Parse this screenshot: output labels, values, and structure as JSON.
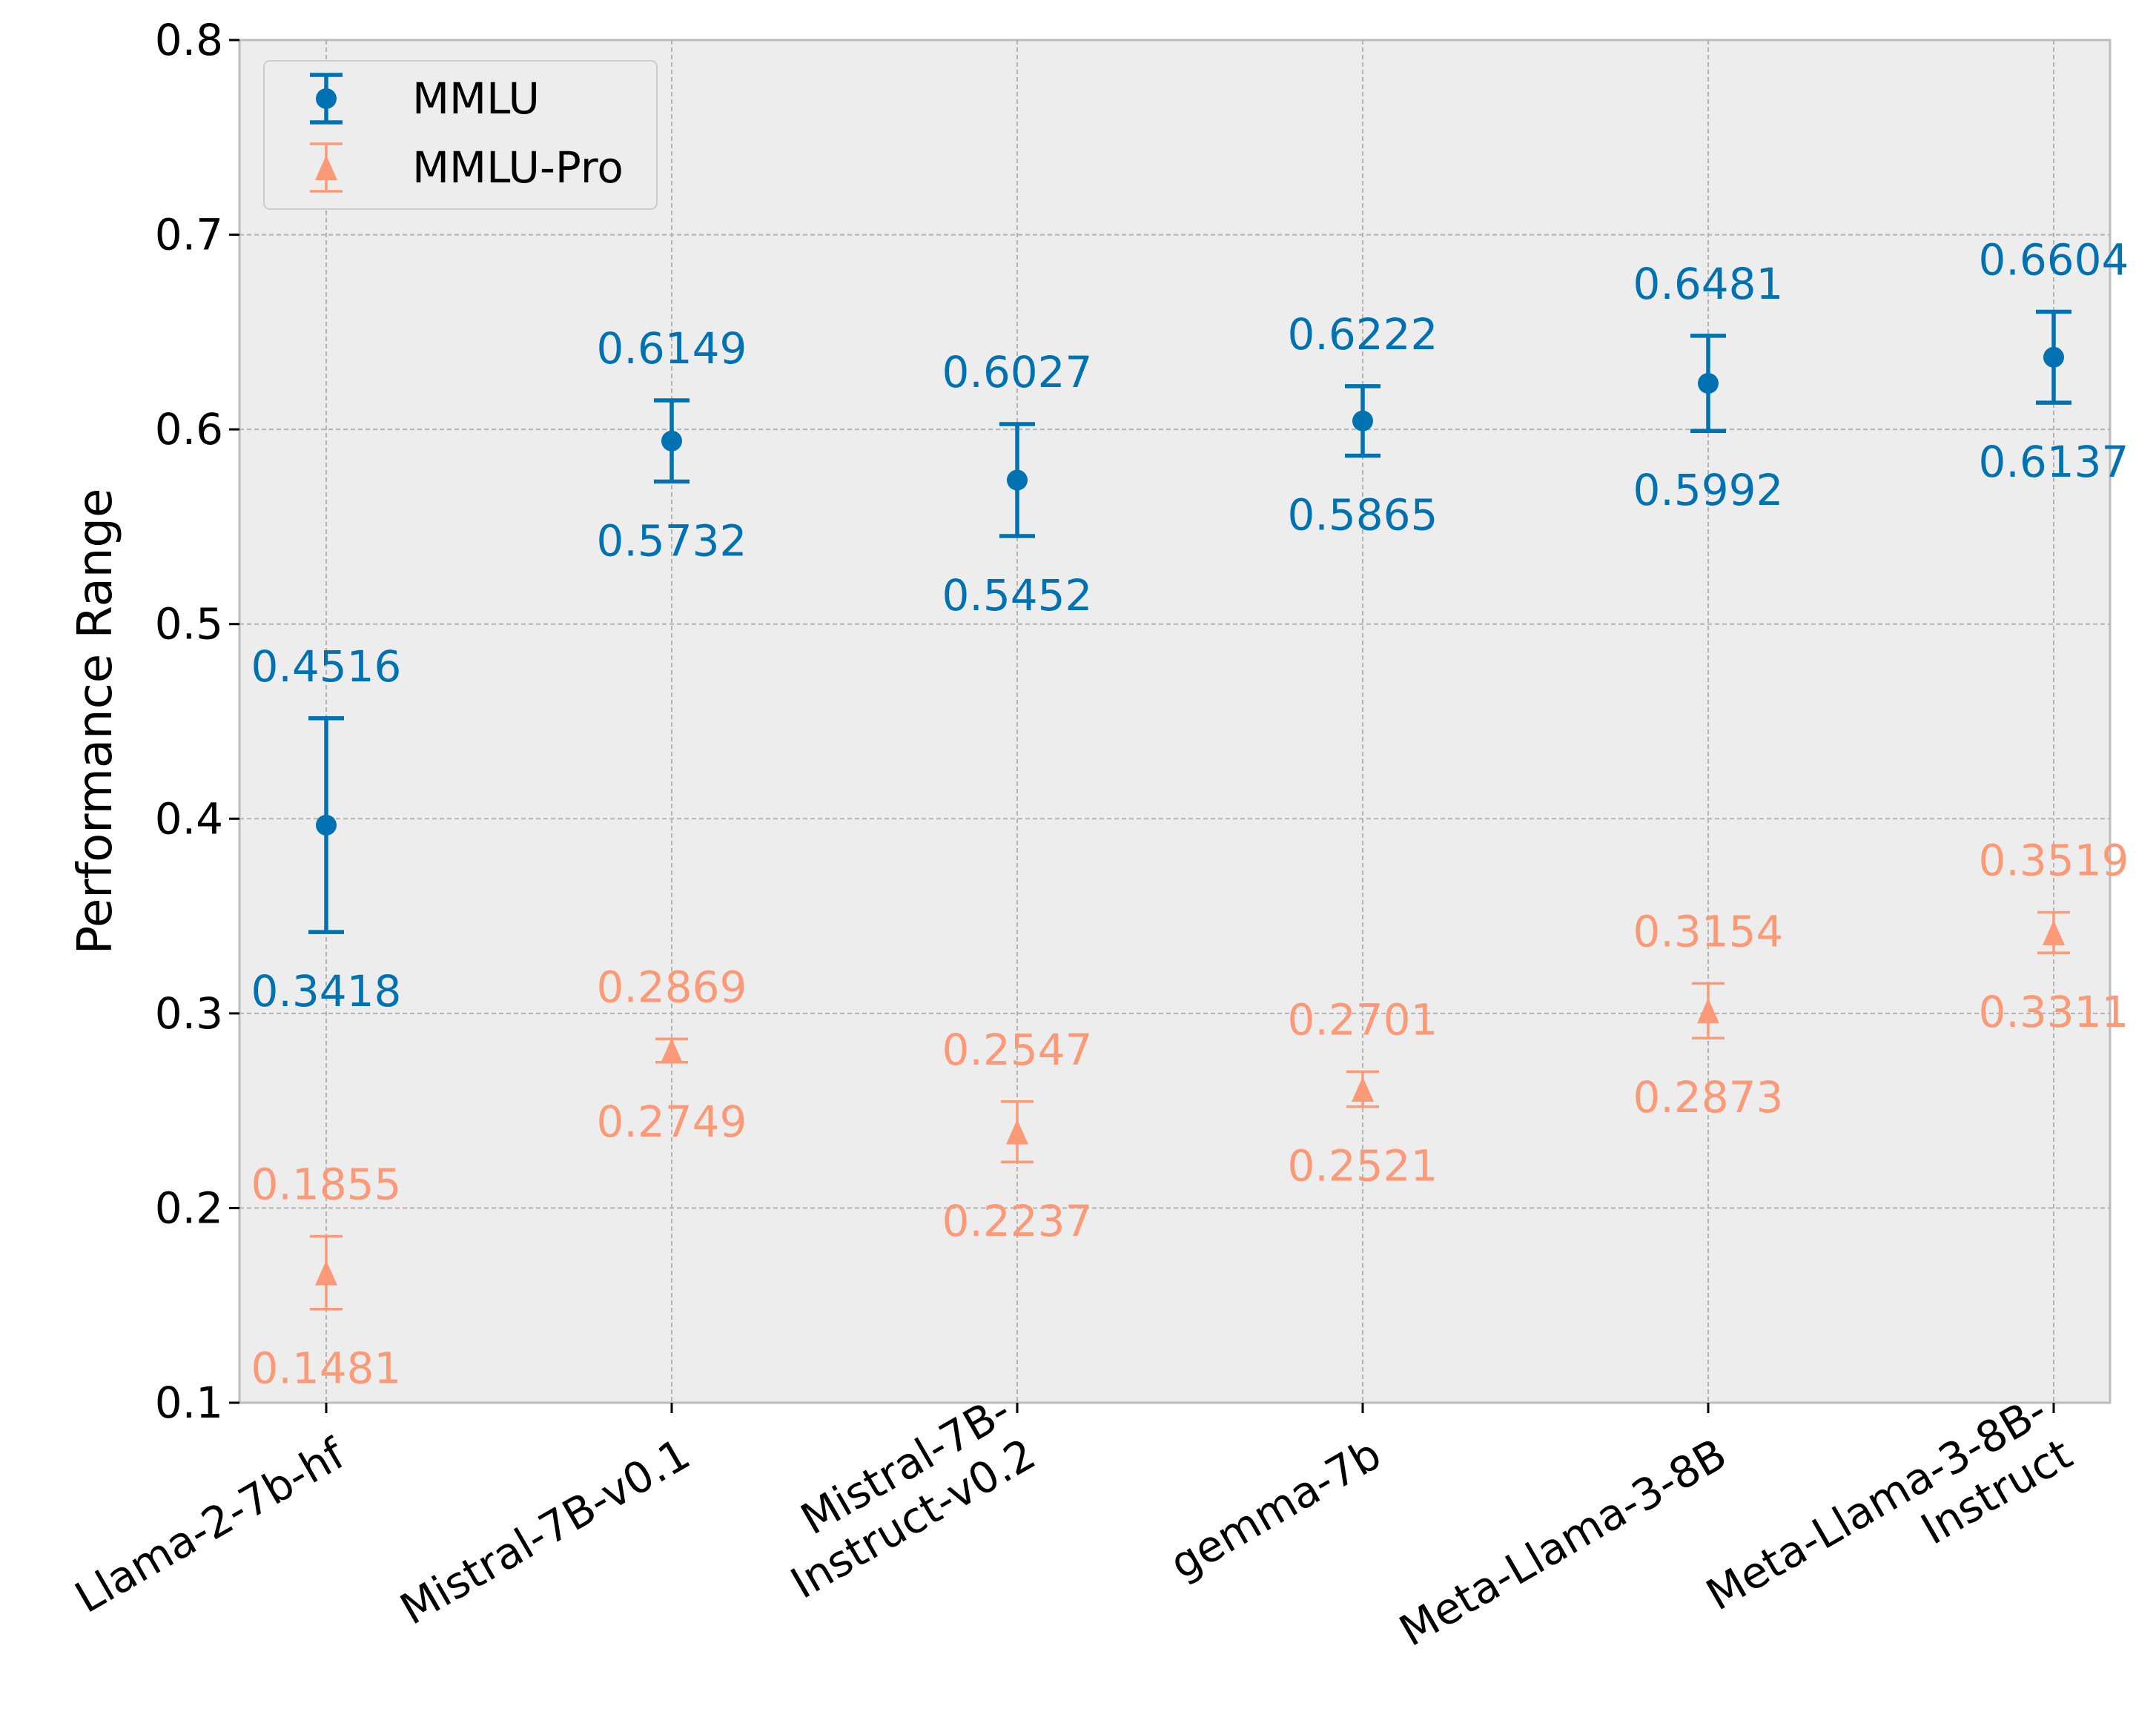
{
  "chart_data": {
    "type": "errorbar",
    "title": "",
    "xlabel": "",
    "ylabel": "Performance Range",
    "ylim": [
      0.1,
      0.8
    ],
    "yticks": [
      "0.1",
      "0.2",
      "0.3",
      "0.4",
      "0.5",
      "0.6",
      "0.7",
      "0.8"
    ],
    "grid": true,
    "legend_position": "top-left",
    "categories": [
      [
        "Llama-2-7b-hf"
      ],
      [
        "Mistral-7B-v0.1"
      ],
      [
        "Mistral-7B-",
        "Instruct-v0.2"
      ],
      [
        "gemma-7b"
      ],
      [
        "Meta-Llama-3-8B"
      ],
      [
        "Meta-Llama-3-8B-",
        "Instruct"
      ]
    ],
    "series": [
      {
        "name": "MMLU",
        "marker": "circle",
        "color": "#0072b2",
        "low": [
          0.3418,
          0.5732,
          0.5452,
          0.5865,
          0.5992,
          0.6137
        ],
        "high": [
          0.4516,
          0.6149,
          0.6027,
          0.6222,
          0.6481,
          0.6604
        ],
        "low_labels": [
          "0.3418",
          "0.5732",
          "0.5452",
          "0.5865",
          "0.5992",
          "0.6137"
        ],
        "high_labels": [
          "0.4516",
          "0.6149",
          "0.6027",
          "0.6222",
          "0.6481",
          "0.6604"
        ]
      },
      {
        "name": "MMLU-Pro",
        "marker": "triangle",
        "color": "#fc9a77",
        "low": [
          0.1481,
          0.2749,
          0.2237,
          0.2521,
          0.2873,
          0.3311
        ],
        "high": [
          0.1855,
          0.2869,
          0.2547,
          0.2701,
          0.3154,
          0.3519
        ],
        "low_labels": [
          "0.1481",
          "0.2749",
          "0.2237",
          "0.2521",
          "0.2873",
          "0.3311"
        ],
        "high_labels": [
          "0.1855",
          "0.2869",
          "0.2547",
          "0.2701",
          "0.3154",
          "0.3519"
        ]
      }
    ]
  }
}
